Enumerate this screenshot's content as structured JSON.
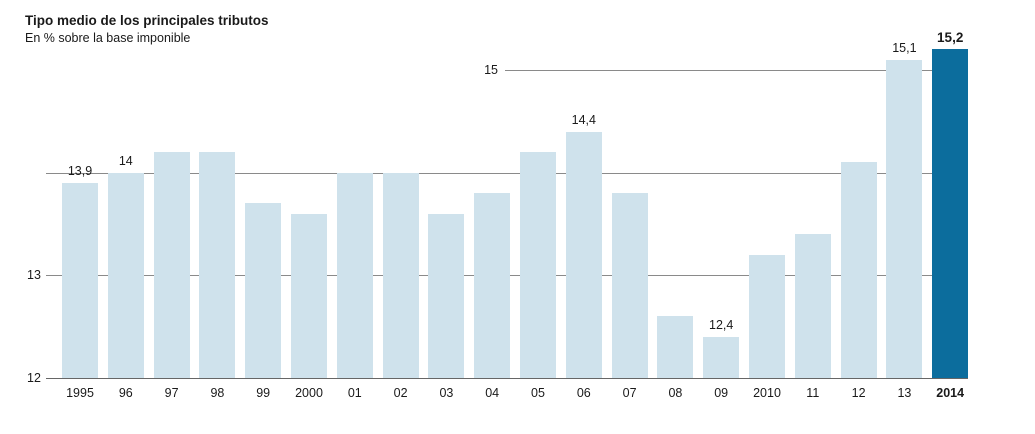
{
  "chart_data": {
    "type": "bar",
    "title": "Tipo medio de los principales tributos",
    "subtitle": "En % sobre la base imponible",
    "categories": [
      "1995",
      "96",
      "97",
      "98",
      "99",
      "2000",
      "01",
      "02",
      "03",
      "04",
      "05",
      "06",
      "07",
      "08",
      "09",
      "2010",
      "11",
      "12",
      "13",
      "2014"
    ],
    "values": [
      13.9,
      14.0,
      14.2,
      14.2,
      13.7,
      13.6,
      14.0,
      14.0,
      13.6,
      13.8,
      14.2,
      14.4,
      13.8,
      12.6,
      12.4,
      13.2,
      13.4,
      14.1,
      15.1,
      15.2
    ],
    "data_labels": {
      "1995": "13,9",
      "96": "14",
      "06": "14,4",
      "09": "12,4",
      "13": "15,1",
      "2014": "15,2"
    },
    "highlight_category": "2014",
    "xlabel": "",
    "ylabel": "",
    "ylim": [
      12,
      15.4
    ],
    "yticks": [
      "12",
      "13",
      "15"
    ],
    "ytick_values": [
      12,
      13,
      15
    ],
    "gridlines": [
      13,
      14,
      15
    ],
    "grid_on": true,
    "legend_position": "none",
    "colors": {
      "bar": "#cfe2ec",
      "highlight": "#0c6d9d",
      "grid": "#8a8a8a",
      "axis": "#666666",
      "text": "#1a1a1a"
    }
  }
}
